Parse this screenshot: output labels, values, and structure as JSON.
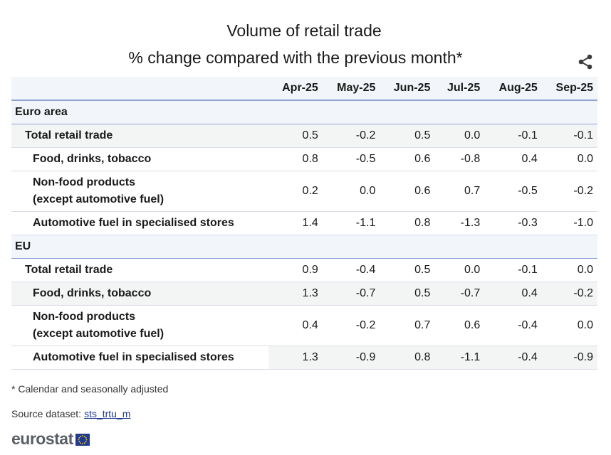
{
  "header": {
    "title": "Volume of retail trade",
    "subtitle": "% change compared with the previous month*",
    "share_icon": "share-icon"
  },
  "table": {
    "columns": [
      "Apr-25",
      "May-25",
      "Jun-25",
      "Jul-25",
      "Aug-25",
      "Sep-25"
    ],
    "groups": [
      {
        "name": "Euro area",
        "rows": [
          {
            "label_lines": [
              "Total retail trade"
            ],
            "values": [
              "0.5",
              "-0.2",
              "0.5",
              "0.0",
              "-0.1",
              "-0.1"
            ]
          },
          {
            "label_lines": [
              "Food, drinks, tobacco"
            ],
            "values": [
              "0.8",
              "-0.5",
              "0.6",
              "-0.8",
              "0.4",
              "0.0"
            ]
          },
          {
            "label_lines": [
              "Non-food products",
              "(except automotive fuel)"
            ],
            "values": [
              "0.2",
              "0.0",
              "0.6",
              "0.7",
              "-0.5",
              "-0.2"
            ]
          },
          {
            "label_lines": [
              "Automotive fuel in specialised stores"
            ],
            "values": [
              "1.4",
              "-1.1",
              "0.8",
              "-1.3",
              "-0.3",
              "-1.0"
            ]
          }
        ]
      },
      {
        "name": "EU",
        "rows": [
          {
            "label_lines": [
              "Total retail trade"
            ],
            "values": [
              "0.9",
              "-0.4",
              "0.5",
              "0.0",
              "-0.1",
              "0.0"
            ]
          },
          {
            "label_lines": [
              "Food, drinks, tobacco"
            ],
            "values": [
              "1.3",
              "-0.7",
              "0.5",
              "-0.7",
              "0.4",
              "-0.2"
            ]
          },
          {
            "label_lines": [
              "Non-food products",
              "(except automotive fuel)"
            ],
            "values": [
              "0.4",
              "-0.2",
              "0.7",
              "0.6",
              "-0.4",
              "0.0"
            ]
          },
          {
            "label_lines": [
              "Automotive fuel in specialised stores"
            ],
            "values": [
              "1.3",
              "-0.9",
              "0.8",
              "-1.1",
              "-0.4",
              "-0.9"
            ]
          }
        ]
      }
    ]
  },
  "footer": {
    "note": "* Calendar and seasonally adjusted",
    "source_label": "Source dataset:",
    "source_link": "sts_trtu_m",
    "logo_text": "eurostat",
    "logo_icon": "eu-flag-icon"
  },
  "colors": {
    "header_bg": "#f2f5fa",
    "rule": "#8fa2d4",
    "shade": "#f3f4f4",
    "link": "#1f3a93"
  }
}
